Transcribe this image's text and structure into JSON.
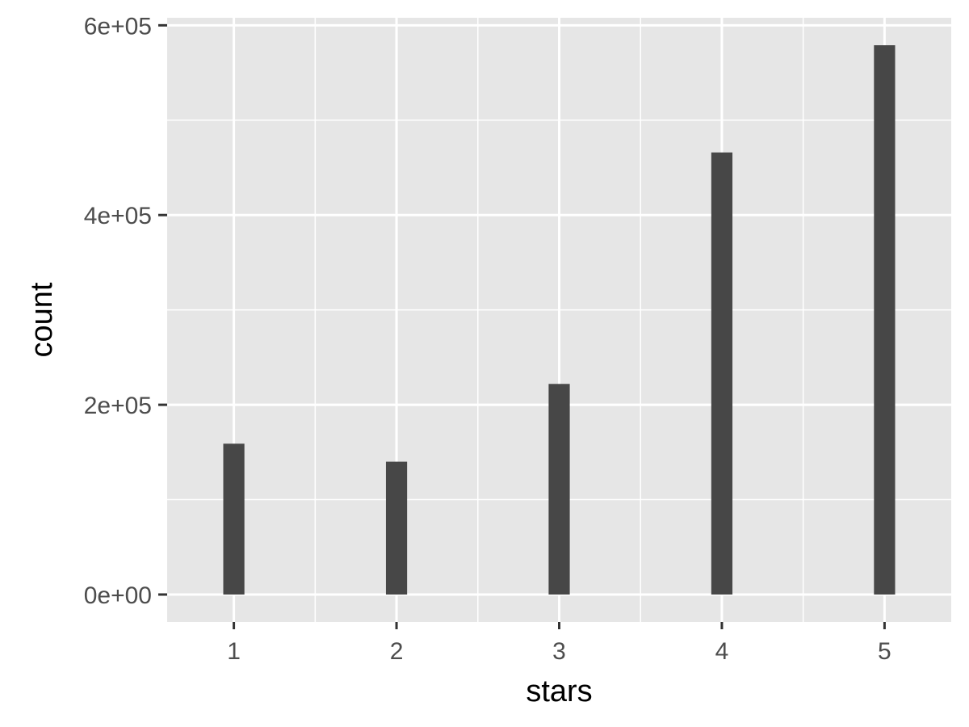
{
  "chart_data": {
    "type": "bar",
    "xlabel": "stars",
    "ylabel": "count",
    "x": [
      1,
      2,
      3,
      4,
      5
    ],
    "values": [
      159000,
      140000,
      222000,
      466000,
      579000
    ],
    "xlim": [
      0.59,
      5.41
    ],
    "ylim": [
      -28950,
      607950
    ],
    "x_major_ticks": [
      1,
      2,
      3,
      4,
      5
    ],
    "x_tick_labels": [
      "1",
      "2",
      "3",
      "4",
      "5"
    ],
    "x_minor_ticks": [
      1.5,
      2.5,
      3.5,
      4.5
    ],
    "y_major_ticks": [
      0,
      200000,
      400000,
      600000
    ],
    "y_tick_labels": [
      "0e+00",
      "2e+05",
      "4e+05",
      "6e+05"
    ],
    "y_minor_ticks": [
      100000,
      300000,
      500000
    ],
    "bar_width": 0.13,
    "grid": true,
    "legend": "none",
    "colors": {
      "bar": "#474747",
      "panel_background": "#e6e6e6",
      "grid": "#ffffff",
      "tick_label": "#4d4d4d",
      "axis_title": "#000000",
      "tick_mark": "#333333"
    }
  }
}
